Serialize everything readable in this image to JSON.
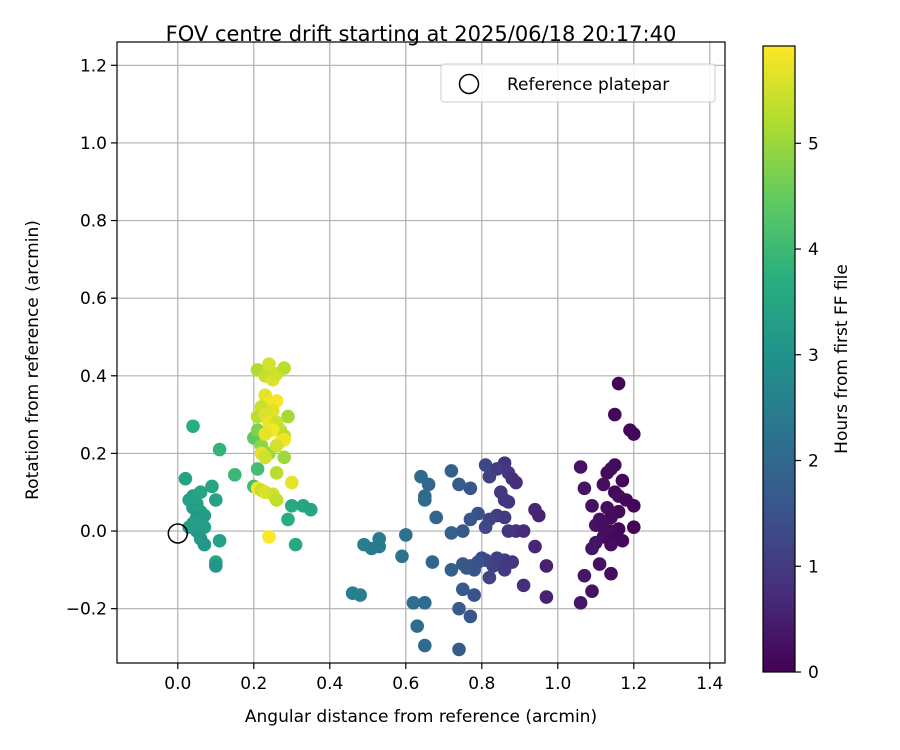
{
  "chart_data": {
    "type": "scatter",
    "title": "FOV centre drift starting at 2025/06/18 20:17:40",
    "xlabel": "Angular distance from reference (arcmin)",
    "ylabel": "Rotation from reference (arcmin)",
    "xlim": [
      -0.16,
      1.44
    ],
    "ylim": [
      -0.34,
      1.26
    ],
    "xticks": [
      0.0,
      0.2,
      0.4,
      0.6,
      0.8,
      1.0,
      1.2,
      1.4
    ],
    "xtick_labels": [
      "0.0",
      "0.2",
      "0.4",
      "0.6",
      "0.8",
      "1.0",
      "1.2",
      "1.4"
    ],
    "yticks": [
      -0.2,
      0.0,
      0.2,
      0.4,
      0.6,
      0.8,
      1.0,
      1.2
    ],
    "ytick_labels": [
      "−0.2",
      "0.0",
      "0.2",
      "0.4",
      "0.6",
      "0.8",
      "1.0",
      "1.2"
    ],
    "grid": true,
    "legend": {
      "position": "top-right",
      "entries": [
        {
          "label": "Reference platepar",
          "marker": "open-circle"
        }
      ]
    },
    "reference_point": {
      "x": 0.0,
      "y": 0.0,
      "label": "Reference platepar"
    },
    "colorbar": {
      "label": "Hours from first FF file",
      "colormap": "viridis",
      "range": [
        0,
        5.92
      ],
      "ticks": [
        0,
        1,
        2,
        3,
        4,
        5
      ],
      "tick_labels": [
        "0",
        "1",
        "2",
        "3",
        "4",
        "5"
      ]
    },
    "series": [
      {
        "points": [
          {
            "x": 1.16,
            "y": 0.38,
            "c": 0.05
          },
          {
            "x": 1.15,
            "y": 0.3,
            "c": 0.1
          },
          {
            "x": 1.19,
            "y": 0.26,
            "c": 0.08
          },
          {
            "x": 1.2,
            "y": 0.25,
            "c": 0.12
          },
          {
            "x": 1.06,
            "y": 0.165,
            "c": 0.3
          },
          {
            "x": 1.15,
            "y": 0.17,
            "c": 0.15
          },
          {
            "x": 1.14,
            "y": 0.16,
            "c": 0.2
          },
          {
            "x": 1.13,
            "y": 0.15,
            "c": 0.18
          },
          {
            "x": 1.17,
            "y": 0.13,
            "c": 0.1
          },
          {
            "x": 1.07,
            "y": 0.11,
            "c": 0.35
          },
          {
            "x": 1.12,
            "y": 0.12,
            "c": 0.22
          },
          {
            "x": 1.15,
            "y": 0.1,
            "c": 0.12
          },
          {
            "x": 1.16,
            "y": 0.09,
            "c": 0.16
          },
          {
            "x": 1.18,
            "y": 0.08,
            "c": 0.1
          },
          {
            "x": 1.2,
            "y": 0.065,
            "c": 0.08
          },
          {
            "x": 1.09,
            "y": 0.065,
            "c": 0.28
          },
          {
            "x": 1.13,
            "y": 0.06,
            "c": 0.24
          },
          {
            "x": 1.16,
            "y": 0.05,
            "c": 0.14
          },
          {
            "x": 1.14,
            "y": 0.035,
            "c": 0.18
          },
          {
            "x": 1.11,
            "y": 0.03,
            "c": 0.26
          },
          {
            "x": 1.1,
            "y": 0.015,
            "c": 0.3
          },
          {
            "x": 1.12,
            "y": 0.01,
            "c": 0.22
          },
          {
            "x": 1.2,
            "y": 0.01,
            "c": 0.06
          },
          {
            "x": 1.16,
            "y": 0.005,
            "c": 0.12
          },
          {
            "x": 1.14,
            "y": 0.0,
            "c": 0.18
          },
          {
            "x": 1.13,
            "y": -0.01,
            "c": 0.2
          },
          {
            "x": 1.12,
            "y": -0.015,
            "c": 0.24
          },
          {
            "x": 1.15,
            "y": -0.02,
            "c": 0.14
          },
          {
            "x": 1.17,
            "y": -0.025,
            "c": 0.1
          },
          {
            "x": 1.1,
            "y": -0.03,
            "c": 0.3
          },
          {
            "x": 1.14,
            "y": -0.035,
            "c": 0.18
          },
          {
            "x": 1.09,
            "y": -0.045,
            "c": 0.34
          },
          {
            "x": 1.11,
            "y": -0.085,
            "c": 0.28
          },
          {
            "x": 1.14,
            "y": -0.11,
            "c": 0.2
          },
          {
            "x": 1.07,
            "y": -0.115,
            "c": 0.34
          },
          {
            "x": 1.09,
            "y": -0.155,
            "c": 0.3
          },
          {
            "x": 1.06,
            "y": -0.185,
            "c": 0.36
          },
          {
            "x": 0.86,
            "y": 0.175,
            "c": 0.85
          },
          {
            "x": 0.81,
            "y": 0.17,
            "c": 1.25
          },
          {
            "x": 0.84,
            "y": 0.16,
            "c": 1.05
          },
          {
            "x": 0.87,
            "y": 0.15,
            "c": 0.95
          },
          {
            "x": 0.82,
            "y": 0.14,
            "c": 1.15
          },
          {
            "x": 0.88,
            "y": 0.135,
            "c": 0.8
          },
          {
            "x": 0.89,
            "y": 0.125,
            "c": 0.78
          },
          {
            "x": 0.85,
            "y": 0.1,
            "c": 0.95
          },
          {
            "x": 0.86,
            "y": 0.08,
            "c": 0.92
          },
          {
            "x": 0.87,
            "y": 0.075,
            "c": 0.88
          },
          {
            "x": 0.94,
            "y": 0.055,
            "c": 0.62
          },
          {
            "x": 0.95,
            "y": 0.04,
            "c": 0.58
          },
          {
            "x": 0.84,
            "y": 0.04,
            "c": 1.1
          },
          {
            "x": 0.86,
            "y": 0.035,
            "c": 1.0
          },
          {
            "x": 0.82,
            "y": 0.03,
            "c": 1.2
          },
          {
            "x": 0.81,
            "y": 0.01,
            "c": 1.25
          },
          {
            "x": 0.89,
            "y": 0.0,
            "c": 0.82
          },
          {
            "x": 0.91,
            "y": 0.0,
            "c": 0.72
          },
          {
            "x": 0.87,
            "y": 0.0,
            "c": 0.9
          },
          {
            "x": 0.94,
            "y": -0.04,
            "c": 0.62
          },
          {
            "x": 0.97,
            "y": -0.09,
            "c": 0.55
          },
          {
            "x": 0.91,
            "y": -0.14,
            "c": 0.75
          },
          {
            "x": 0.97,
            "y": -0.17,
            "c": 0.55
          },
          {
            "x": 0.86,
            "y": -0.075,
            "c": 1.0
          },
          {
            "x": 0.88,
            "y": -0.08,
            "c": 0.92
          },
          {
            "x": 0.84,
            "y": -0.07,
            "c": 1.1
          },
          {
            "x": 0.83,
            "y": -0.09,
            "c": 1.15
          },
          {
            "x": 0.86,
            "y": -0.1,
            "c": 1.02
          },
          {
            "x": 0.82,
            "y": -0.12,
            "c": 1.2
          },
          {
            "x": 0.8,
            "y": -0.07,
            "c": 1.3
          },
          {
            "x": 0.81,
            "y": -0.075,
            "c": 1.25
          },
          {
            "x": 0.72,
            "y": 0.155,
            "c": 1.8
          },
          {
            "x": 0.74,
            "y": 0.12,
            "c": 1.7
          },
          {
            "x": 0.77,
            "y": 0.11,
            "c": 1.55
          },
          {
            "x": 0.79,
            "y": 0.045,
            "c": 1.45
          },
          {
            "x": 0.77,
            "y": 0.03,
            "c": 1.55
          },
          {
            "x": 0.75,
            "y": 0.0,
            "c": 1.65
          },
          {
            "x": 0.72,
            "y": -0.005,
            "c": 1.8
          },
          {
            "x": 0.77,
            "y": -0.09,
            "c": 1.55
          },
          {
            "x": 0.75,
            "y": -0.085,
            "c": 1.65
          },
          {
            "x": 0.79,
            "y": -0.08,
            "c": 1.45
          },
          {
            "x": 0.78,
            "y": -0.1,
            "c": 1.5
          },
          {
            "x": 0.76,
            "y": -0.095,
            "c": 1.6
          },
          {
            "x": 0.72,
            "y": -0.1,
            "c": 1.8
          },
          {
            "x": 0.75,
            "y": -0.15,
            "c": 1.65
          },
          {
            "x": 0.78,
            "y": -0.165,
            "c": 1.5
          },
          {
            "x": 0.74,
            "y": -0.2,
            "c": 1.7
          },
          {
            "x": 0.77,
            "y": -0.22,
            "c": 1.55
          },
          {
            "x": 0.74,
            "y": -0.305,
            "c": 1.72
          },
          {
            "x": 0.64,
            "y": 0.14,
            "c": 2.05
          },
          {
            "x": 0.66,
            "y": 0.12,
            "c": 1.98
          },
          {
            "x": 0.65,
            "y": 0.09,
            "c": 2.02
          },
          {
            "x": 0.65,
            "y": 0.08,
            "c": 2.05
          },
          {
            "x": 0.68,
            "y": 0.035,
            "c": 1.92
          },
          {
            "x": 0.6,
            "y": -0.01,
            "c": 2.2
          },
          {
            "x": 0.53,
            "y": -0.02,
            "c": 2.4
          },
          {
            "x": 0.49,
            "y": -0.035,
            "c": 2.5
          },
          {
            "x": 0.51,
            "y": -0.045,
            "c": 2.45
          },
          {
            "x": 0.53,
            "y": -0.04,
            "c": 2.4
          },
          {
            "x": 0.59,
            "y": -0.065,
            "c": 2.25
          },
          {
            "x": 0.67,
            "y": -0.08,
            "c": 1.95
          },
          {
            "x": 0.46,
            "y": -0.16,
            "c": 2.55
          },
          {
            "x": 0.48,
            "y": -0.165,
            "c": 2.52
          },
          {
            "x": 0.62,
            "y": -0.185,
            "c": 2.15
          },
          {
            "x": 0.65,
            "y": -0.185,
            "c": 2.05
          },
          {
            "x": 0.63,
            "y": -0.245,
            "c": 2.1
          },
          {
            "x": 0.65,
            "y": -0.295,
            "c": 2.05
          },
          {
            "x": 0.04,
            "y": 0.27,
            "c": 3.7
          },
          {
            "x": 0.02,
            "y": 0.135,
            "c": 3.4
          },
          {
            "x": 0.04,
            "y": 0.09,
            "c": 3.3
          },
          {
            "x": 0.03,
            "y": 0.08,
            "c": 3.35
          },
          {
            "x": 0.06,
            "y": 0.1,
            "c": 3.45
          },
          {
            "x": 0.09,
            "y": 0.115,
            "c": 3.5
          },
          {
            "x": 0.1,
            "y": 0.08,
            "c": 3.4
          },
          {
            "x": 0.05,
            "y": 0.07,
            "c": 3.35
          },
          {
            "x": 0.04,
            "y": 0.06,
            "c": 3.3
          },
          {
            "x": 0.06,
            "y": 0.05,
            "c": 3.4
          },
          {
            "x": 0.07,
            "y": 0.04,
            "c": 3.25
          },
          {
            "x": 0.05,
            "y": 0.035,
            "c": 3.2
          },
          {
            "x": 0.04,
            "y": 0.02,
            "c": 3.3
          },
          {
            "x": 0.03,
            "y": 0.01,
            "c": 3.35
          },
          {
            "x": 0.05,
            "y": 0.0,
            "c": 3.25
          },
          {
            "x": 0.06,
            "y": 0.015,
            "c": 3.28
          },
          {
            "x": 0.07,
            "y": 0.01,
            "c": 3.3
          },
          {
            "x": 0.06,
            "y": -0.02,
            "c": 3.2
          },
          {
            "x": 0.07,
            "y": -0.035,
            "c": 3.15
          },
          {
            "x": 0.11,
            "y": -0.025,
            "c": 3.4
          },
          {
            "x": 0.1,
            "y": -0.08,
            "c": 3.55
          },
          {
            "x": 0.1,
            "y": -0.09,
            "c": 3.1
          },
          {
            "x": 0.11,
            "y": 0.21,
            "c": 3.85
          },
          {
            "x": 0.15,
            "y": 0.145,
            "c": 3.95
          },
          {
            "x": 0.2,
            "y": 0.115,
            "c": 4.05
          },
          {
            "x": 0.21,
            "y": 0.16,
            "c": 4.1
          },
          {
            "x": 0.3,
            "y": 0.065,
            "c": 3.6
          },
          {
            "x": 0.29,
            "y": 0.03,
            "c": 3.65
          },
          {
            "x": 0.33,
            "y": 0.065,
            "c": 3.5
          },
          {
            "x": 0.35,
            "y": 0.055,
            "c": 3.45
          },
          {
            "x": 0.31,
            "y": -0.035,
            "c": 3.55
          },
          {
            "x": 0.2,
            "y": 0.24,
            "c": 4.45
          },
          {
            "x": 0.21,
            "y": 0.26,
            "c": 4.75
          },
          {
            "x": 0.22,
            "y": 0.22,
            "c": 4.9
          },
          {
            "x": 0.24,
            "y": 0.2,
            "c": 5.0
          },
          {
            "x": 0.21,
            "y": 0.415,
            "c": 5.2
          },
          {
            "x": 0.23,
            "y": 0.4,
            "c": 5.4
          },
          {
            "x": 0.24,
            "y": 0.43,
            "c": 5.55
          },
          {
            "x": 0.25,
            "y": 0.39,
            "c": 5.6
          },
          {
            "x": 0.26,
            "y": 0.405,
            "c": 5.5
          },
          {
            "x": 0.28,
            "y": 0.42,
            "c": 5.3
          },
          {
            "x": 0.23,
            "y": 0.35,
            "c": 5.7
          },
          {
            "x": 0.24,
            "y": 0.33,
            "c": 5.8
          },
          {
            "x": 0.26,
            "y": 0.335,
            "c": 5.85
          },
          {
            "x": 0.25,
            "y": 0.31,
            "c": 5.65
          },
          {
            "x": 0.22,
            "y": 0.32,
            "c": 5.45
          },
          {
            "x": 0.21,
            "y": 0.295,
            "c": 5.3
          },
          {
            "x": 0.23,
            "y": 0.3,
            "c": 5.6
          },
          {
            "x": 0.24,
            "y": 0.28,
            "c": 5.75
          },
          {
            "x": 0.26,
            "y": 0.28,
            "c": 5.5
          },
          {
            "x": 0.27,
            "y": 0.26,
            "c": 5.4
          },
          {
            "x": 0.29,
            "y": 0.295,
            "c": 5.1
          },
          {
            "x": 0.25,
            "y": 0.26,
            "c": 5.85
          },
          {
            "x": 0.23,
            "y": 0.25,
            "c": 5.7
          },
          {
            "x": 0.28,
            "y": 0.245,
            "c": 5.3
          },
          {
            "x": 0.27,
            "y": 0.23,
            "c": 5.9
          },
          {
            "x": 0.28,
            "y": 0.235,
            "c": 5.8
          },
          {
            "x": 0.26,
            "y": 0.22,
            "c": 5.55
          },
          {
            "x": 0.22,
            "y": 0.2,
            "c": 5.65
          },
          {
            "x": 0.23,
            "y": 0.19,
            "c": 5.5
          },
          {
            "x": 0.28,
            "y": 0.19,
            "c": 5.05
          },
          {
            "x": 0.26,
            "y": 0.15,
            "c": 5.3
          },
          {
            "x": 0.3,
            "y": 0.125,
            "c": 5.7
          },
          {
            "x": 0.21,
            "y": 0.11,
            "c": 5.8
          },
          {
            "x": 0.22,
            "y": 0.105,
            "c": 5.4
          },
          {
            "x": 0.23,
            "y": 0.1,
            "c": 5.6
          },
          {
            "x": 0.25,
            "y": 0.095,
            "c": 5.5
          },
          {
            "x": 0.26,
            "y": 0.08,
            "c": 5.35
          },
          {
            "x": 0.24,
            "y": -0.015,
            "c": 5.9
          }
        ]
      }
    ]
  }
}
